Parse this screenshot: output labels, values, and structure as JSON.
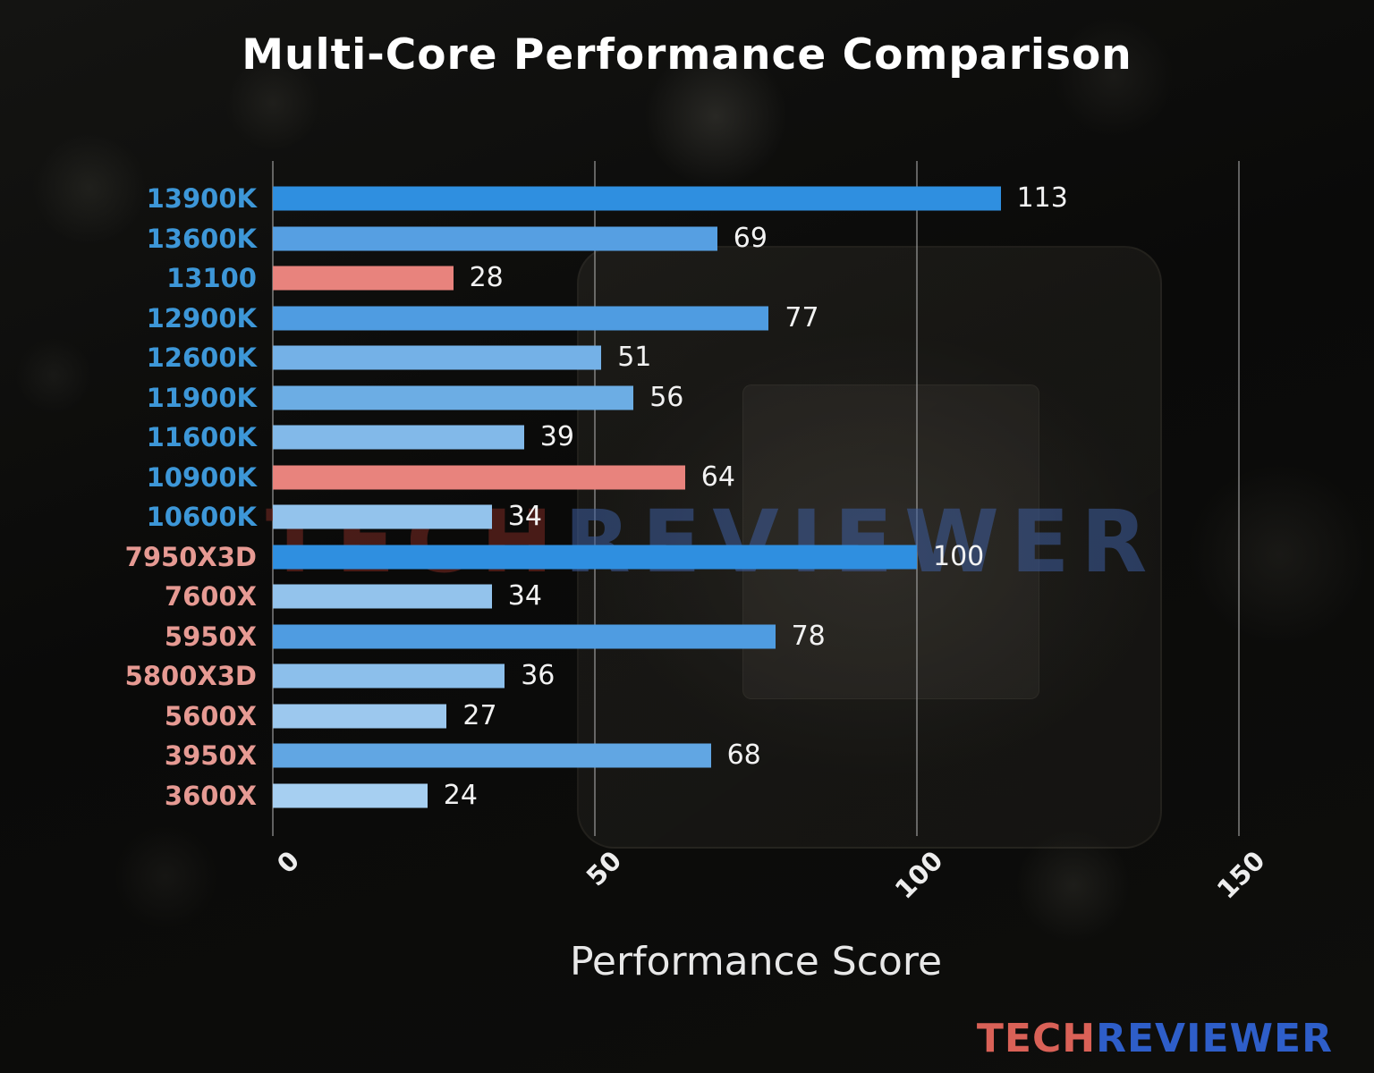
{
  "chart_data": {
    "type": "bar",
    "orientation": "horizontal",
    "title": "Multi-Core Performance Comparison",
    "xlabel": "Performance Score",
    "xlim": [
      0,
      150
    ],
    "xticks": [
      0,
      50,
      100,
      150
    ],
    "grid": "vertical gridlines at x ticks",
    "legend": "none",
    "categories": [
      "13900K",
      "13600K",
      "13100",
      "12900K",
      "12600K",
      "11900K",
      "11600K",
      "10900K",
      "10600K",
      "7950X3D",
      "7600X",
      "5950X",
      "5800X3D",
      "5600X",
      "3950X",
      "3600X"
    ],
    "values": [
      113,
      69,
      28,
      77,
      51,
      56,
      39,
      64,
      34,
      100,
      34,
      78,
      36,
      27,
      68,
      24
    ],
    "bar_colors": [
      "#2f8fe0",
      "#569fe2",
      "#e8837d",
      "#4f9ce1",
      "#74b1e7",
      "#6cade4",
      "#82b9e9",
      "#e8837d",
      "#93c3ec",
      "#2f8fe0",
      "#93c3ec",
      "#4f9ce1",
      "#8cbfeb",
      "#9cc8ee",
      "#61a6e3",
      "#a6cff1"
    ],
    "label_colors": [
      "#3d97d8",
      "#3d97d8",
      "#3d97d8",
      "#3d97d8",
      "#3d97d8",
      "#3d97d8",
      "#3d97d8",
      "#3d97d8",
      "#3d97d8",
      "#e69a93",
      "#e69a93",
      "#e69a93",
      "#e69a93",
      "#e69a93",
      "#e69a93",
      "#e69a93"
    ],
    "value_label_color": "#f2f2f2",
    "accent_colors": {
      "primary_bar_blue": "#2f8fe0",
      "highlight_bar_salmon": "#e8837d",
      "intel_label_blue": "#3d97d8",
      "amd_label_salmon": "#e69a93"
    }
  },
  "watermark": {
    "tech": "TECH",
    "reviewer": "REVIEWER",
    "tech_color": "#7c2a24",
    "reviewer_color": "#3d5d9e"
  },
  "logo": {
    "tech": "TECH",
    "reviewer": "REVIEWER",
    "tech_color": "#d96157",
    "reviewer_color": "#2e5ec9"
  }
}
